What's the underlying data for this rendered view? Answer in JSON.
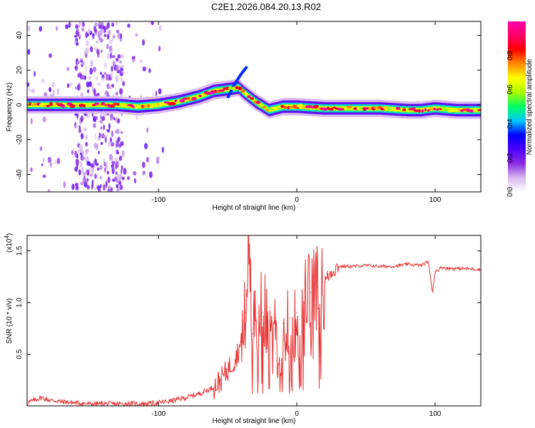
{
  "title": "C2E1.2026.084.20.13.R02",
  "chart_data": [
    {
      "type": "heatmap",
      "name": "spectrogram",
      "xlabel": "Height of straight line (km)",
      "ylabel": "Frequency (Hz)",
      "xlim": [
        -195,
        133
      ],
      "ylim": [
        -50,
        48
      ],
      "xticks": [
        -100,
        0,
        100
      ],
      "xtick_labels": [
        "-100",
        "0",
        "100"
      ],
      "yticks": [
        -40,
        -20,
        0,
        20,
        40
      ],
      "ytick_labels": [
        "-40",
        "-20",
        "0",
        "20",
        "40"
      ],
      "ridge": {
        "x": [
          -195,
          -160,
          -130,
          -115,
          -100,
          -85,
          -70,
          -60,
          -50,
          -42,
          -38,
          -30,
          -20,
          -10,
          0,
          20,
          40,
          60,
          80,
          90,
          100,
          115,
          133
        ],
        "freq": [
          0,
          0,
          0,
          -1,
          0,
          2,
          5,
          8,
          9,
          10,
          7,
          2,
          -3,
          -1,
          -1,
          -2,
          -2,
          -2,
          -3,
          -3,
          -2,
          -3,
          -3
        ]
      },
      "branch": {
        "x": [
          -50,
          -45,
          -40,
          -36
        ],
        "freq": [
          4,
          12,
          18,
          22
        ]
      },
      "scatter_band_x": [
        -160,
        -125
      ]
    },
    {
      "type": "colorbar",
      "name": "colorbar",
      "label": "Normalized spectral amplitude",
      "range": [
        0,
        1
      ],
      "ticks": [
        0.0,
        0.2,
        0.4,
        0.6,
        0.8
      ],
      "tick_labels": [
        "0.0",
        "0.2",
        "0.4",
        "0.6",
        "0.8"
      ],
      "colors": [
        "#ffffff",
        "#d7b7f0",
        "#8a2be2",
        "#4b00ff",
        "#0000ff",
        "#00c8ff",
        "#00ff64",
        "#aaff00",
        "#ffff00",
        "#ff8c00",
        "#ff0000",
        "#ff0066",
        "#ff00aa"
      ]
    },
    {
      "type": "line",
      "name": "snr",
      "xlabel": "Height of straight line (km)",
      "ylabel": "SNR (10 * v/v)",
      "scale_label": "(x10",
      "scale_exp": "4",
      "scale_close": ")",
      "xlim": [
        -195,
        133
      ],
      "ylim": [
        0,
        1.65
      ],
      "xticks": [
        -100,
        0,
        100
      ],
      "xtick_labels": [
        "-100",
        "0",
        "100"
      ],
      "yticks": [
        0.5,
        1.0,
        1.5
      ],
      "ytick_labels": [
        "0.5",
        "1.0",
        "1.5"
      ],
      "series": [
        {
          "name": "SNR",
          "color": "#e83030",
          "x": [
            -195,
            -185,
            -180,
            -170,
            -160,
            -150,
            -140,
            -130,
            -120,
            -110,
            -100,
            -90,
            -80,
            -70,
            -60,
            -55,
            -50,
            -45,
            -40,
            -37,
            -35,
            -32,
            -30,
            -25,
            -20,
            -15,
            -10,
            -5,
            0,
            5,
            10,
            15,
            20,
            25,
            30,
            40,
            50,
            60,
            70,
            80,
            90,
            95,
            98,
            100,
            105,
            110,
            120,
            133
          ],
          "y": [
            0.03,
            0.08,
            0.06,
            0.04,
            0.03,
            0.02,
            0.02,
            0.02,
            0.02,
            0.02,
            0.03,
            0.05,
            0.08,
            0.12,
            0.18,
            0.25,
            0.35,
            0.45,
            0.6,
            0.9,
            1.6,
            0.7,
            1.1,
            0.9,
            0.95,
            0.85,
            0.8,
            0.85,
            0.9,
            1.0,
            1.1,
            1.15,
            1.2,
            1.3,
            1.35,
            1.35,
            1.36,
            1.35,
            1.35,
            1.37,
            1.36,
            1.4,
            1.1,
            1.3,
            1.34,
            1.33,
            1.33,
            1.32
          ]
        }
      ]
    }
  ]
}
